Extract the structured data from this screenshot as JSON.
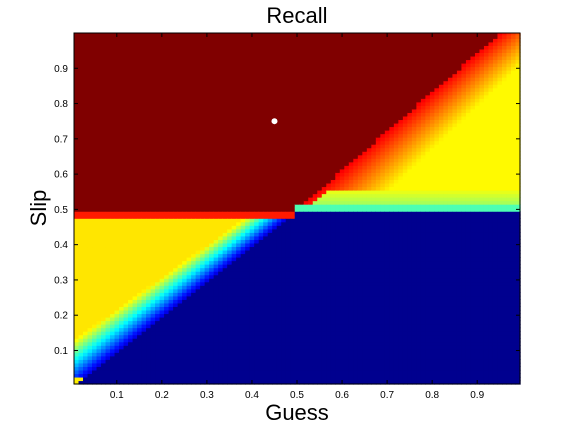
{
  "chart_data": {
    "type": "heatmap",
    "title": "Recall",
    "xlabel": "Guess",
    "ylabel": "Slip",
    "xlim": [
      0,
      1
    ],
    "ylim": [
      0,
      1
    ],
    "x_ticks": [
      "0.1",
      "0.2",
      "0.3",
      "0.4",
      "0.5",
      "0.6",
      "0.7",
      "0.8",
      "0.9"
    ],
    "y_ticks": [
      "0.1",
      "0.2",
      "0.3",
      "0.4",
      "0.5",
      "0.6",
      "0.7",
      "0.8",
      "0.9"
    ],
    "grid": false,
    "colormap": "jet",
    "colormap_stops": [
      "#00008f",
      "#0000ff",
      "#0080ff",
      "#00ffff",
      "#80ff80",
      "#ffff00",
      "#ff8000",
      "#ff0000",
      "#800000"
    ],
    "regions": [
      {
        "name": "upper-left",
        "guess_range": [
          0,
          0.5
        ],
        "slip_range": [
          0.5,
          1
        ],
        "level": "maximum",
        "color": "#800000"
      },
      {
        "name": "lower-right",
        "guess_range": [
          0.5,
          1
        ],
        "slip_range": [
          0,
          0.5
        ],
        "level": "minimum",
        "color": "#00008f"
      },
      {
        "name": "upper-right",
        "guess_range": [
          0.5,
          1
        ],
        "slip_range": [
          0.5,
          1
        ],
        "level": "gradient dark red to orange to yellow"
      },
      {
        "name": "lower-left",
        "guess_range": [
          0,
          0.5
        ],
        "slip_range": [
          0,
          0.5
        ],
        "level": "gradient dark blue to light blue to yellow-green"
      }
    ],
    "marker": {
      "guess": 0.45,
      "slip": 0.75,
      "color": "#ffffff"
    }
  }
}
